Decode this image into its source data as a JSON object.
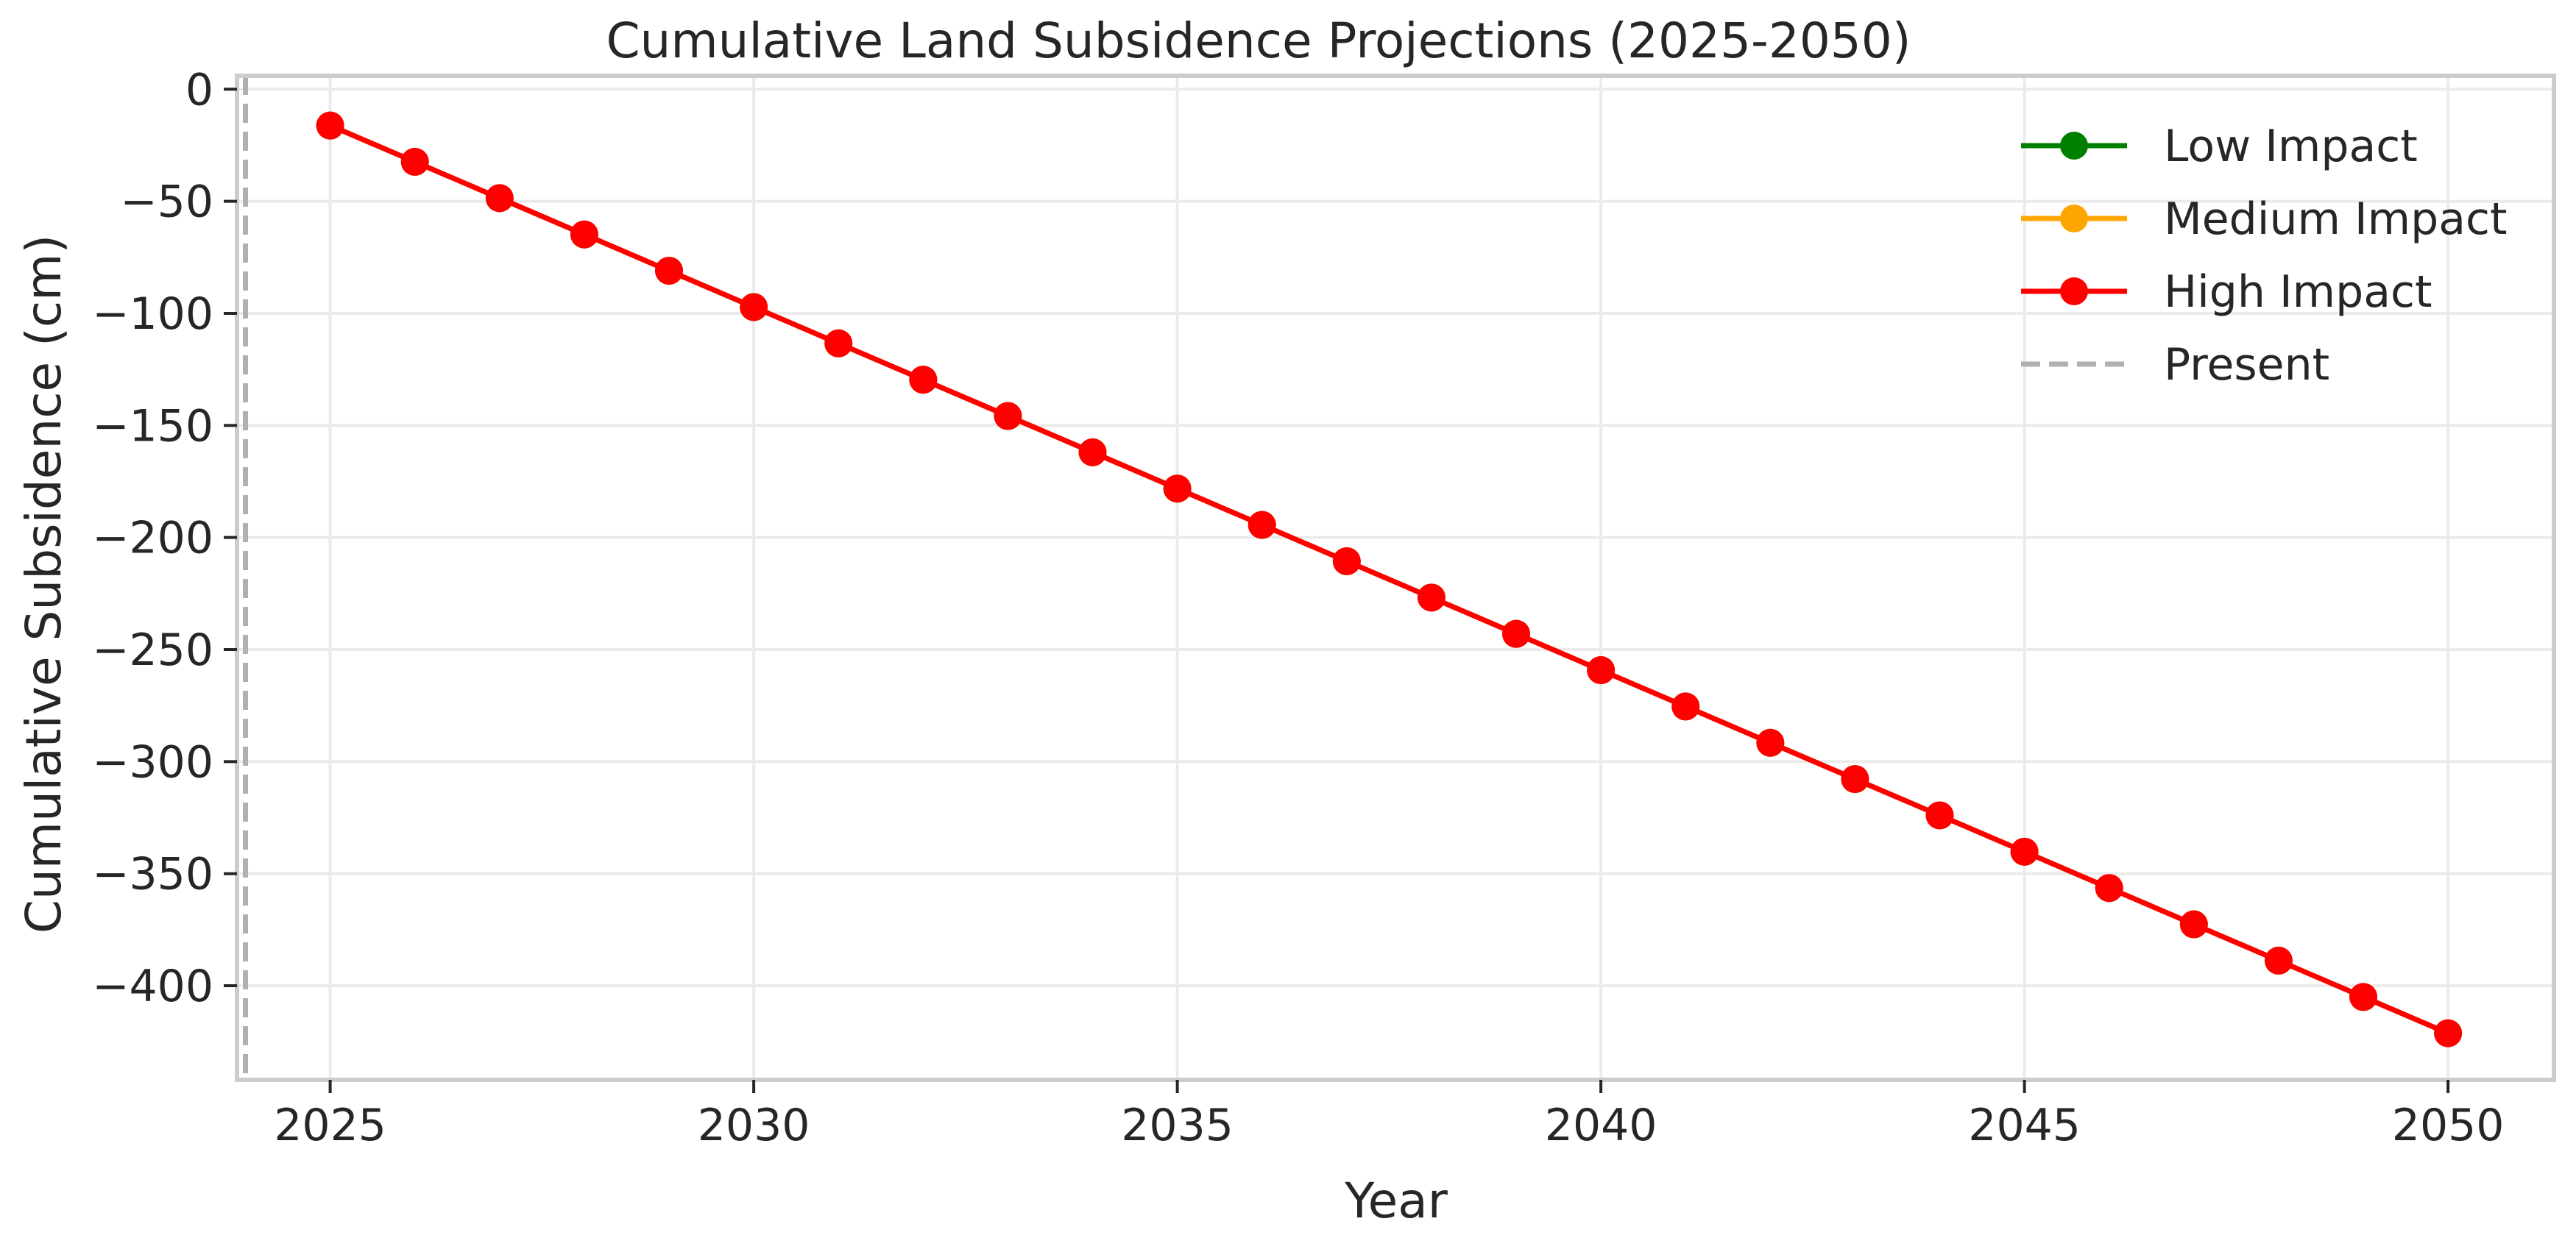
{
  "chart_data": {
    "type": "line",
    "title": "Cumulative Land Subsidence Projections (2025-2050)",
    "xlabel": "Year",
    "ylabel": "Cumulative Subsidence (cm)",
    "xlim": [
      2023.9,
      2051.25
    ],
    "ylim": [
      -442,
      6
    ],
    "grid": true,
    "legend_position": "top-right",
    "x_ticks": [
      2025,
      2030,
      2035,
      2040,
      2045,
      2050
    ],
    "x_tick_labels": [
      "2025",
      "2030",
      "2035",
      "2040",
      "2045",
      "2050"
    ],
    "y_ticks": [
      0,
      -50,
      -100,
      -150,
      -200,
      -250,
      -300,
      -350,
      -400
    ],
    "y_tick_labels": [
      "0",
      "−50",
      "−100",
      "−150",
      "−200",
      "−250",
      "−300",
      "−350",
      "−400"
    ],
    "x": [
      2025,
      2026,
      2027,
      2028,
      2029,
      2030,
      2031,
      2032,
      2033,
      2034,
      2035,
      2036,
      2037,
      2038,
      2039,
      2040,
      2041,
      2042,
      2043,
      2044,
      2045,
      2046,
      2047,
      2048,
      2049,
      2050
    ],
    "series": [
      {
        "name": "Low Impact",
        "color": "#008000",
        "values": [
          -16.2,
          -32.4,
          -48.6,
          -64.8,
          -81,
          -97.2,
          -113.4,
          -129.6,
          -145.8,
          -162,
          -178.2,
          -194.4,
          -210.6,
          -226.8,
          -243,
          -259.2,
          -275.4,
          -291.6,
          -307.8,
          -324,
          -340.2,
          -356.4,
          -372.6,
          -388.8,
          -405,
          -421.2
        ]
      },
      {
        "name": "Medium Impact",
        "color": "#ffa500",
        "values": [
          -16.2,
          -32.4,
          -48.6,
          -64.8,
          -81,
          -97.2,
          -113.4,
          -129.6,
          -145.8,
          -162,
          -178.2,
          -194.4,
          -210.6,
          -226.8,
          -243,
          -259.2,
          -275.4,
          -291.6,
          -307.8,
          -324,
          -340.2,
          -356.4,
          -372.6,
          -388.8,
          -405,
          -421.2
        ]
      },
      {
        "name": "High Impact",
        "color": "#ff0000",
        "values": [
          -16.2,
          -32.4,
          -48.6,
          -64.8,
          -81,
          -97.2,
          -113.4,
          -129.6,
          -145.8,
          -162,
          -178.2,
          -194.4,
          -210.6,
          -226.8,
          -243,
          -259.2,
          -275.4,
          -291.6,
          -307.8,
          -324,
          -340.2,
          -356.4,
          -372.6,
          -388.8,
          -405,
          -421.2
        ]
      }
    ],
    "reference_line": {
      "name": "Present",
      "x": 2024,
      "color": "#b0b0b0",
      "style": "dashed"
    }
  }
}
